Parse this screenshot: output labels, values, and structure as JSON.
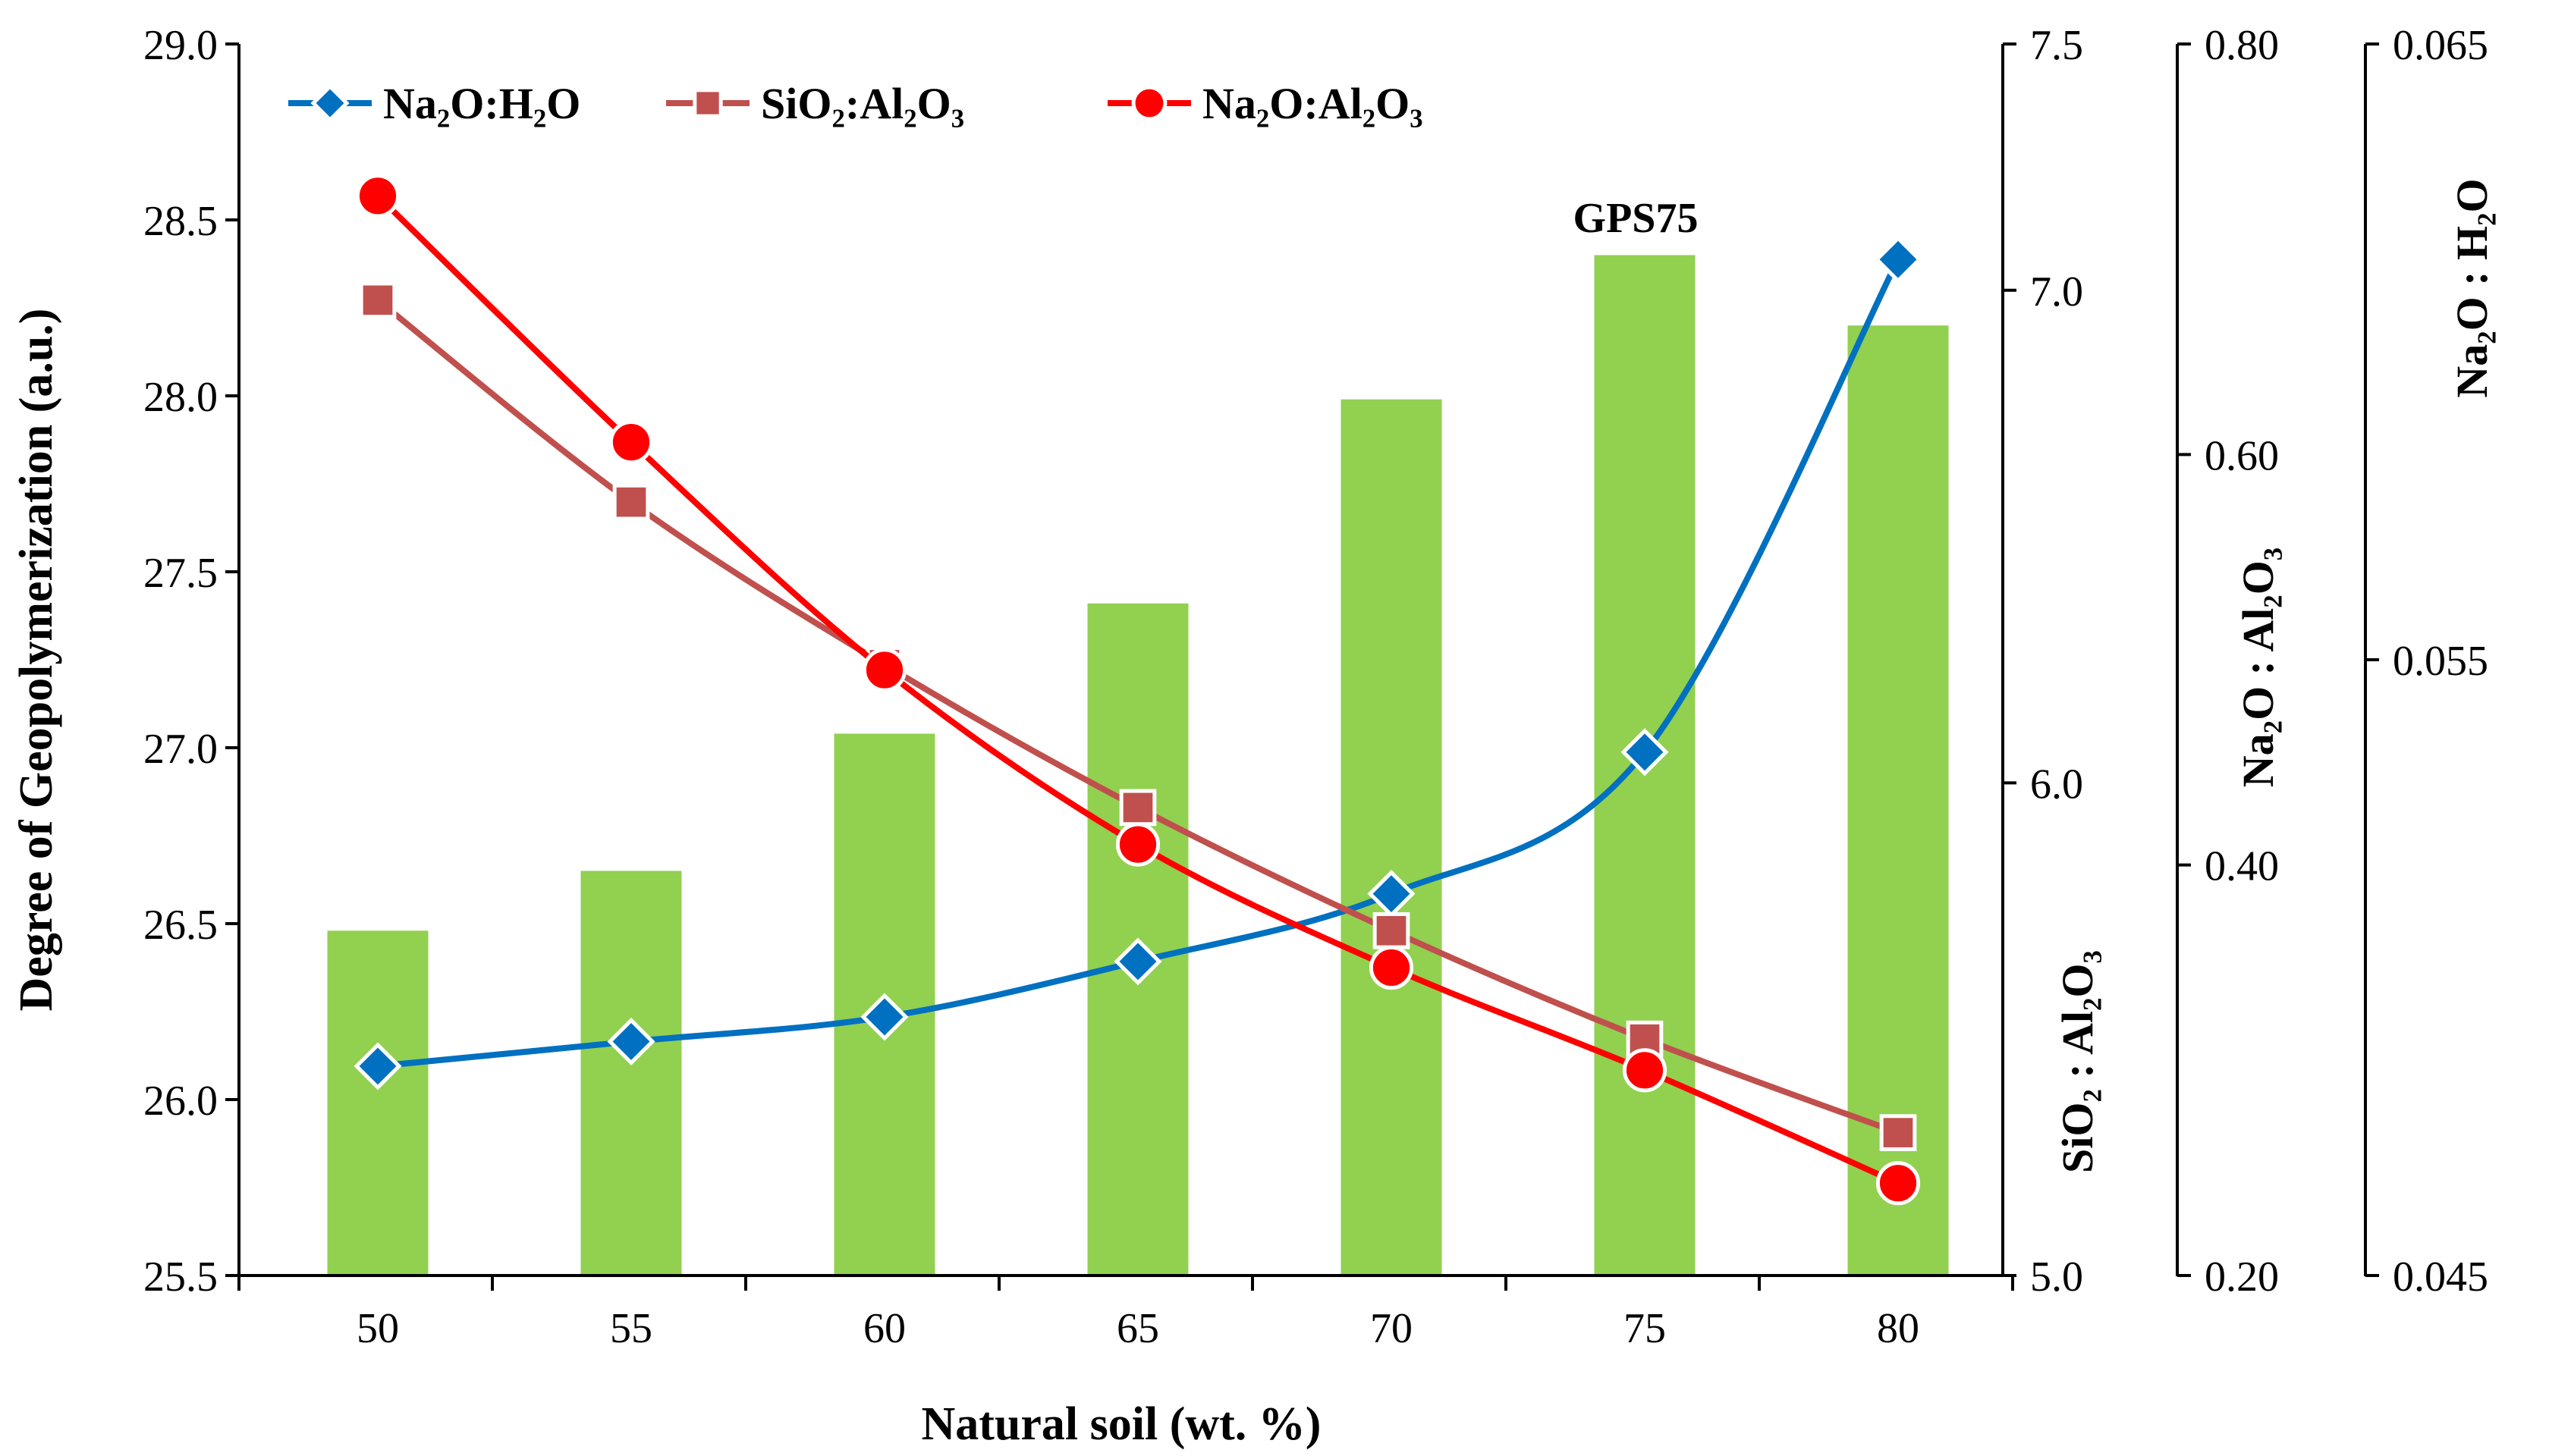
{
  "chart_data": {
    "type": "bar",
    "x": [
      50,
      55,
      60,
      65,
      70,
      75,
      80
    ],
    "xlabel": "Natural soil (wt. %)",
    "ylabel": "Degree of Geopolymerization (a.u.)",
    "ylim": [
      25.5,
      29.0
    ],
    "yticks": [
      "25.5",
      "26.0",
      "26.5",
      "27.0",
      "27.5",
      "28.0",
      "28.5",
      "29.0"
    ],
    "bars": {
      "name": "Degree of Geopolymerization",
      "values": [
        26.48,
        26.65,
        27.04,
        27.41,
        27.99,
        28.4,
        28.2
      ],
      "color": "#92D050"
    },
    "bar_annotation": {
      "text": "GPS75",
      "x": 75
    },
    "right_axes": [
      {
        "id": "sio2-al2o3",
        "label": "SiO₂ : Al₂O₃",
        "range": [
          5.0,
          7.5
        ],
        "ticks": [
          "5.0",
          "6.0",
          "7.0",
          "7.5"
        ]
      },
      {
        "id": "na2o-al2o3",
        "label": "Na₂O : Al₂O₃",
        "range": [
          0.2,
          0.8
        ],
        "ticks": [
          "0.20",
          "0.40",
          "0.60",
          "0.80"
        ]
      },
      {
        "id": "na2o-h2o",
        "label": "Na₂O : H₂O",
        "range": [
          0.045,
          0.065
        ],
        "ticks": [
          "0.045",
          "0.055",
          "0.065"
        ]
      }
    ],
    "series": [
      {
        "name": "Na₂O:H₂O",
        "axis": "na2o-h2o",
        "color": "#0070C0",
        "marker": "diamond",
        "values": [
          0.0484,
          0.0488,
          0.0492,
          0.0501,
          0.0512,
          0.0535,
          0.0615
        ]
      },
      {
        "name": "SiO₂:Al₂O₃",
        "axis": "sio2-al2o3",
        "color": "#C0504D",
        "marker": "square",
        "values": [
          6.98,
          6.57,
          6.24,
          5.95,
          5.7,
          5.48,
          5.29
        ]
      },
      {
        "name": "Na₂O:Al₂O₃",
        "axis": "na2o-al2o3",
        "color": "#FF0000",
        "marker": "circle",
        "values": [
          0.726,
          0.606,
          0.495,
          0.41,
          0.35,
          0.3,
          0.245
        ]
      }
    ],
    "legend": [
      "Na₂O:H₂O",
      "SiO₂:Al₂O₃",
      "Na₂O:Al₂O₃"
    ],
    "legend_position": "top-left"
  }
}
